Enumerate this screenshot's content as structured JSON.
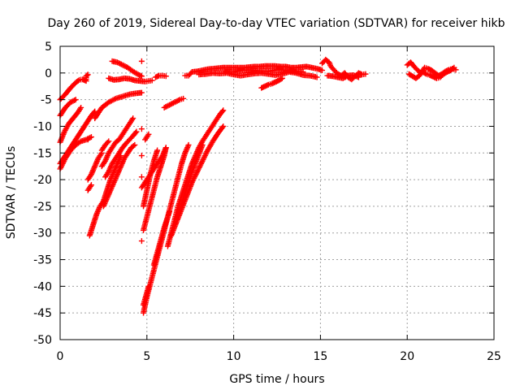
{
  "chart_data": {
    "type": "scatter",
    "title": "Day 260 of 2019, Sidereal Day-to-day VTEC variation (SDTVAR) for receiver hikb",
    "xlabel": "GPS time / hours",
    "ylabel": "SDTVAR / TECUs",
    "xlim": [
      0,
      25
    ],
    "ylim": [
      -50,
      5
    ],
    "xticks": [
      0,
      5,
      10,
      15,
      20,
      25
    ],
    "yticks": [
      5,
      0,
      -5,
      -10,
      -15,
      -20,
      -25,
      -30,
      -35,
      -40,
      -45,
      -50
    ],
    "grid": true,
    "marker": "plus",
    "series_color": "#ff0000",
    "series": [
      {
        "points": [
          [
            0.0,
            -5.0
          ],
          [
            0.3,
            -4.0
          ],
          [
            0.6,
            -2.8
          ],
          [
            0.9,
            -1.8
          ],
          [
            1.1,
            -1.3
          ],
          [
            1.3,
            -1.2
          ],
          [
            1.5,
            -1.5
          ],
          [
            1.5,
            -0.6
          ],
          [
            1.6,
            -0.3
          ],
          [
            0.0,
            -8.0
          ],
          [
            0.3,
            -6.5
          ],
          [
            0.6,
            -5.5
          ],
          [
            0.9,
            -5.0
          ],
          [
            0.0,
            -13.0
          ],
          [
            0.25,
            -11.0
          ],
          [
            0.5,
            -9.5
          ],
          [
            0.75,
            -8.5
          ],
          [
            1.0,
            -7.5
          ],
          [
            1.2,
            -6.5
          ],
          [
            0.0,
            -18.0
          ],
          [
            0.3,
            -16.0
          ],
          [
            0.6,
            -14.5
          ],
          [
            0.9,
            -13.5
          ],
          [
            1.2,
            -12.8
          ],
          [
            1.5,
            -12.5
          ],
          [
            1.8,
            -12.0
          ],
          [
            0.0,
            -17.0
          ],
          [
            0.3,
            -15.5
          ],
          [
            0.6,
            -14.0
          ],
          [
            0.9,
            -12.5
          ],
          [
            1.2,
            -11.0
          ],
          [
            1.5,
            -9.5
          ],
          [
            1.8,
            -8.0
          ],
          [
            2.0,
            -7.2
          ],
          [
            1.6,
            -12.5
          ],
          [
            2.0,
            -8.5
          ],
          [
            2.4,
            -6.5
          ],
          [
            2.8,
            -5.5
          ],
          [
            3.2,
            -4.8
          ],
          [
            3.6,
            -4.4
          ],
          [
            4.0,
            -4.0
          ],
          [
            4.4,
            -3.8
          ],
          [
            4.7,
            -3.7
          ],
          [
            1.6,
            -20.0
          ],
          [
            1.8,
            -19.0
          ],
          [
            2.0,
            -17.5
          ],
          [
            2.2,
            -16.0
          ],
          [
            2.4,
            -15.0
          ],
          [
            1.6,
            -22.0
          ],
          [
            1.8,
            -21.0
          ],
          [
            1.7,
            -30.5
          ],
          [
            1.9,
            -28.5
          ],
          [
            2.1,
            -26.5
          ],
          [
            2.3,
            -25.0
          ],
          [
            2.5,
            -24.0
          ],
          [
            2.7,
            -22.0
          ],
          [
            2.9,
            -20.0
          ],
          [
            3.1,
            -18.5
          ],
          [
            3.3,
            -17.0
          ],
          [
            3.5,
            -15.5
          ],
          [
            2.4,
            -17.5
          ],
          [
            2.6,
            -16.5
          ],
          [
            2.8,
            -15.0
          ],
          [
            3.0,
            -14.0
          ],
          [
            3.2,
            -13.0
          ],
          [
            3.4,
            -12.5
          ],
          [
            3.6,
            -11.5
          ],
          [
            3.8,
            -10.5
          ],
          [
            4.0,
            -9.5
          ],
          [
            4.2,
            -8.5
          ],
          [
            2.4,
            -14.5
          ],
          [
            2.6,
            -13.5
          ],
          [
            2.8,
            -12.8
          ],
          [
            2.6,
            -19.5
          ],
          [
            2.8,
            -18.5
          ],
          [
            3.0,
            -17.0
          ],
          [
            3.2,
            -16.0
          ],
          [
            3.4,
            -15.0
          ],
          [
            3.6,
            -14.0
          ],
          [
            3.8,
            -13.2
          ],
          [
            4.0,
            -12.5
          ],
          [
            4.2,
            -11.8
          ],
          [
            4.4,
            -11.0
          ],
          [
            2.5,
            -25.0
          ],
          [
            2.7,
            -23.5
          ],
          [
            2.9,
            -22.0
          ],
          [
            3.1,
            -20.5
          ],
          [
            3.3,
            -19.0
          ],
          [
            3.5,
            -17.5
          ],
          [
            3.7,
            -16.0
          ],
          [
            3.9,
            -15.0
          ],
          [
            4.1,
            -14.0
          ],
          [
            4.3,
            -13.5
          ],
          [
            3.0,
            2.2
          ],
          [
            3.3,
            2.0
          ],
          [
            3.6,
            1.5
          ],
          [
            3.9,
            1.0
          ],
          [
            4.2,
            0.3
          ],
          [
            4.5,
            -0.3
          ],
          [
            4.7,
            -0.6
          ],
          [
            2.8,
            -1.0
          ],
          [
            3.1,
            -1.3
          ],
          [
            3.4,
            -1.2
          ],
          [
            3.7,
            -1.0
          ],
          [
            4.0,
            -1.1
          ],
          [
            4.3,
            -1.4
          ],
          [
            4.6,
            -1.5
          ],
          [
            4.9,
            -1.6
          ],
          [
            5.1,
            -1.5
          ],
          [
            5.3,
            -1.4
          ],
          [
            4.7,
            2.2
          ],
          [
            4.7,
            -10.5
          ],
          [
            4.7,
            -15.5
          ],
          [
            4.7,
            -19.5
          ],
          [
            4.7,
            -31.5
          ],
          [
            4.7,
            -21.5
          ],
          [
            4.9,
            -20.5
          ],
          [
            5.1,
            -19.5
          ],
          [
            5.3,
            -18.5
          ],
          [
            5.5,
            -17.5
          ],
          [
            5.7,
            -16.5
          ],
          [
            5.9,
            -15.5
          ],
          [
            6.1,
            -14.0
          ],
          [
            4.8,
            -29.5
          ],
          [
            5.0,
            -27.0
          ],
          [
            5.2,
            -24.5
          ],
          [
            5.4,
            -22.0
          ],
          [
            5.6,
            -19.5
          ],
          [
            5.8,
            -17.5
          ],
          [
            6.0,
            -15.5
          ],
          [
            6.1,
            -14.0
          ],
          [
            4.8,
            -25.0
          ],
          [
            5.0,
            -22.0
          ],
          [
            5.2,
            -19.0
          ],
          [
            5.4,
            -16.5
          ],
          [
            5.6,
            -14.5
          ],
          [
            4.9,
            -12.5
          ],
          [
            5.1,
            -11.5
          ],
          [
            4.8,
            -45.0
          ],
          [
            5.0,
            -42.0
          ],
          [
            5.2,
            -39.5
          ],
          [
            5.4,
            -37.0
          ],
          [
            5.6,
            -34.5
          ],
          [
            5.8,
            -32.0
          ],
          [
            6.0,
            -29.5
          ],
          [
            6.2,
            -27.0
          ],
          [
            6.4,
            -24.5
          ],
          [
            6.6,
            -22.0
          ],
          [
            6.8,
            -19.5
          ],
          [
            7.0,
            -17.0
          ],
          [
            7.2,
            -15.0
          ],
          [
            7.4,
            -13.5
          ],
          [
            4.8,
            -43.5
          ],
          [
            5.1,
            -40.0
          ],
          [
            5.4,
            -36.0
          ],
          [
            5.7,
            -32.5
          ],
          [
            6.0,
            -29.0
          ],
          [
            6.3,
            -26.0
          ],
          [
            5.5,
            -0.8
          ],
          [
            5.7,
            -0.5
          ],
          [
            5.9,
            -0.5
          ],
          [
            6.1,
            -0.6
          ],
          [
            6.0,
            -6.5
          ],
          [
            6.3,
            -6.0
          ],
          [
            6.6,
            -5.5
          ],
          [
            6.9,
            -5.0
          ],
          [
            7.1,
            -4.8
          ],
          [
            6.2,
            -32.5
          ],
          [
            6.4,
            -30.0
          ],
          [
            6.6,
            -27.5
          ],
          [
            6.8,
            -25.0
          ],
          [
            7.0,
            -23.0
          ],
          [
            7.2,
            -21.0
          ],
          [
            7.4,
            -19.0
          ],
          [
            7.6,
            -17.0
          ],
          [
            7.8,
            -15.5
          ],
          [
            8.0,
            -14.0
          ],
          [
            8.2,
            -12.8
          ],
          [
            8.4,
            -11.8
          ],
          [
            8.6,
            -10.8
          ],
          [
            8.8,
            -9.8
          ],
          [
            9.0,
            -8.8
          ],
          [
            9.2,
            -7.8
          ],
          [
            9.4,
            -7.0
          ],
          [
            6.4,
            -30.5
          ],
          [
            6.7,
            -28.0
          ],
          [
            7.0,
            -25.5
          ],
          [
            7.3,
            -23.0
          ],
          [
            7.6,
            -20.5
          ],
          [
            7.9,
            -18.5
          ],
          [
            8.2,
            -16.5
          ],
          [
            8.5,
            -14.5
          ],
          [
            8.8,
            -12.8
          ],
          [
            9.1,
            -11.3
          ],
          [
            9.4,
            -10.0
          ],
          [
            6.7,
            -27.5
          ],
          [
            7.0,
            -24.5
          ],
          [
            7.3,
            -21.5
          ],
          [
            7.6,
            -18.5
          ],
          [
            7.9,
            -16.0
          ],
          [
            8.2,
            -13.5
          ],
          [
            7.2,
            -0.5
          ],
          [
            7.4,
            -0.5
          ],
          [
            7.6,
            0.2
          ],
          [
            7.9,
            0.3
          ],
          [
            8.2,
            0.5
          ],
          [
            8.5,
            0.7
          ],
          [
            8.8,
            0.8
          ],
          [
            9.1,
            0.9
          ],
          [
            9.4,
            1.0
          ],
          [
            9.7,
            1.0
          ],
          [
            10.0,
            1.0
          ],
          [
            10.3,
            1.0
          ],
          [
            10.6,
            1.0
          ],
          [
            10.9,
            1.1
          ],
          [
            11.2,
            1.2
          ],
          [
            11.5,
            1.2
          ],
          [
            11.8,
            1.3
          ],
          [
            12.1,
            1.3
          ],
          [
            12.4,
            1.3
          ],
          [
            12.7,
            1.2
          ],
          [
            13.0,
            1.2
          ],
          [
            13.3,
            1.0
          ],
          [
            13.6,
            1.0
          ],
          [
            13.9,
            1.1
          ],
          [
            14.2,
            1.2
          ],
          [
            14.5,
            1.0
          ],
          [
            14.8,
            0.8
          ],
          [
            15.1,
            0.5
          ],
          [
            8.0,
            -0.3
          ],
          [
            8.4,
            -0.2
          ],
          [
            8.8,
            0.0
          ],
          [
            9.2,
            -0.1
          ],
          [
            9.6,
            0.0
          ],
          [
            10.0,
            -0.3
          ],
          [
            10.4,
            -0.5
          ],
          [
            10.8,
            -0.3
          ],
          [
            11.2,
            -0.1
          ],
          [
            11.6,
            0.0
          ],
          [
            12.0,
            -0.2
          ],
          [
            12.4,
            -0.4
          ],
          [
            12.8,
            -0.2
          ],
          [
            13.2,
            0.2
          ],
          [
            13.6,
            0.0
          ],
          [
            14.0,
            -0.4
          ],
          [
            14.4,
            -0.5
          ],
          [
            14.8,
            -0.8
          ],
          [
            9.5,
            0.3
          ],
          [
            10.0,
            0.2
          ],
          [
            10.5,
            0.5
          ],
          [
            11.0,
            0.5
          ],
          [
            11.5,
            0.4
          ],
          [
            12.0,
            0.3
          ],
          [
            12.5,
            0.6
          ],
          [
            13.0,
            0.5
          ],
          [
            13.5,
            0.3
          ],
          [
            14.0,
            0.2
          ],
          [
            11.6,
            -2.8
          ],
          [
            11.8,
            -2.5
          ],
          [
            12.0,
            -2.2
          ],
          [
            12.2,
            -2.0
          ],
          [
            12.4,
            -1.7
          ],
          [
            12.6,
            -1.4
          ],
          [
            12.8,
            -1.0
          ],
          [
            15.1,
            1.8
          ],
          [
            15.3,
            2.5
          ],
          [
            15.5,
            2.0
          ],
          [
            15.6,
            1.2
          ],
          [
            15.8,
            0.5
          ],
          [
            16.0,
            -0.2
          ],
          [
            16.2,
            -0.5
          ],
          [
            16.4,
            0.0
          ],
          [
            16.6,
            -0.8
          ],
          [
            16.8,
            -1.2
          ],
          [
            17.0,
            -0.6
          ],
          [
            17.2,
            0.0
          ],
          [
            17.4,
            -0.3
          ],
          [
            17.6,
            -0.2
          ],
          [
            15.4,
            -0.5
          ],
          [
            15.7,
            -0.6
          ],
          [
            16.0,
            -0.8
          ],
          [
            16.3,
            -1.0
          ],
          [
            16.6,
            -0.5
          ],
          [
            16.9,
            -0.4
          ],
          [
            17.2,
            -0.8
          ],
          [
            20.0,
            1.5
          ],
          [
            20.2,
            2.0
          ],
          [
            20.4,
            1.2
          ],
          [
            20.6,
            0.5
          ],
          [
            20.8,
            0.0
          ],
          [
            21.0,
            1.0
          ],
          [
            21.2,
            0.8
          ],
          [
            21.4,
            0.5
          ],
          [
            21.6,
            0.0
          ],
          [
            21.8,
            -0.5
          ],
          [
            22.0,
            -0.2
          ],
          [
            22.2,
            0.3
          ],
          [
            22.4,
            0.6
          ],
          [
            22.6,
            0.8
          ],
          [
            22.8,
            0.6
          ],
          [
            20.1,
            -0.2
          ],
          [
            20.3,
            -0.6
          ],
          [
            20.5,
            -1.0
          ],
          [
            20.7,
            -0.5
          ],
          [
            20.9,
            0.2
          ],
          [
            21.1,
            -0.2
          ],
          [
            21.3,
            -0.4
          ],
          [
            21.5,
            -0.7
          ],
          [
            21.7,
            -1.0
          ],
          [
            21.9,
            -0.8
          ],
          [
            22.1,
            -0.2
          ],
          [
            22.3,
            0.2
          ],
          [
            22.5,
            0.5
          ],
          [
            22.7,
            1.0
          ]
        ]
      }
    ]
  }
}
